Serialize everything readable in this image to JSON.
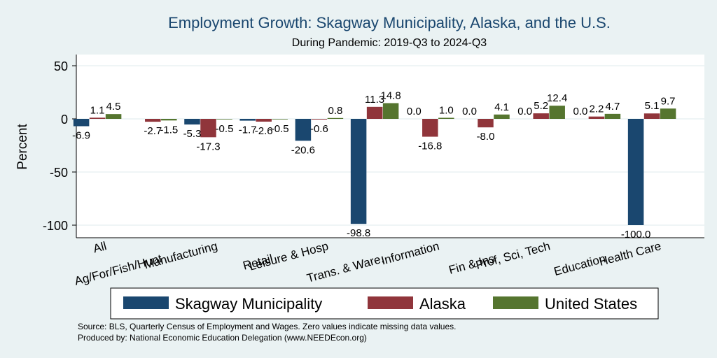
{
  "chart_data": {
    "type": "bar",
    "title": "Employment Growth: Skagway Municipality, Alaska, and the U.S.",
    "subtitle": "During Pandemic: 2019-Q3 to 2024-Q3",
    "ylabel": "Percent",
    "ylim": [
      -110,
      60
    ],
    "yticks": [
      50,
      0,
      -50,
      -100
    ],
    "grid": true,
    "legend_position": "bottom",
    "categories": [
      "All",
      "Ag/For/Fish/Hunt",
      "Manufacturing",
      "Retail",
      "Leisure & Hosp",
      "Trans. & Ware.",
      "Information",
      "Fin & Ins",
      "Prof, Sci, Tech",
      "Education",
      "Health Care"
    ],
    "series": [
      {
        "name": "Skagway Municipality",
        "color": "#1a476f",
        "values": [
          -6.9,
          0.0,
          -5.3,
          -1.7,
          -20.6,
          -98.8,
          0.0,
          0.0,
          0.0,
          0.0,
          -100.0
        ]
      },
      {
        "name": "Alaska",
        "color": "#90353b",
        "values": [
          1.1,
          -2.7,
          -17.3,
          -2.6,
          -0.6,
          11.3,
          -16.8,
          -8.0,
          5.2,
          2.2,
          5.1
        ]
      },
      {
        "name": "United States",
        "color": "#55752f",
        "values": [
          4.5,
          -1.5,
          -0.5,
          -0.5,
          0.8,
          14.8,
          1.0,
          4.1,
          12.4,
          4.7,
          9.7
        ]
      }
    ],
    "data_labels": [
      [
        "-6.9",
        "1.1",
        "4.5"
      ],
      [
        "",
        "-2.7",
        "-1.5"
      ],
      [
        "-5.3",
        "-17.3",
        "-0.5"
      ],
      [
        "-1.7",
        "-2.6",
        "-0.5"
      ],
      [
        "-20.6",
        "-0.6",
        "0.8"
      ],
      [
        "-98.8",
        "11.3",
        "14.8"
      ],
      [
        "0.0",
        "-16.8",
        "1.0"
      ],
      [
        "0.0",
        "-8.0",
        "4.1"
      ],
      [
        "0.0",
        "5.2",
        "12.4"
      ],
      [
        "0.0",
        "2.2",
        "4.7"
      ],
      [
        "-100.0",
        "5.1",
        "9.7"
      ]
    ]
  },
  "notes": {
    "source": "Source: BLS, Quarterly Census of Employment and Wages. Zero values indicate missing data values.",
    "produced_by": "Produced by: National Economic Education Delegation (www.NEEDEcon.org)"
  }
}
